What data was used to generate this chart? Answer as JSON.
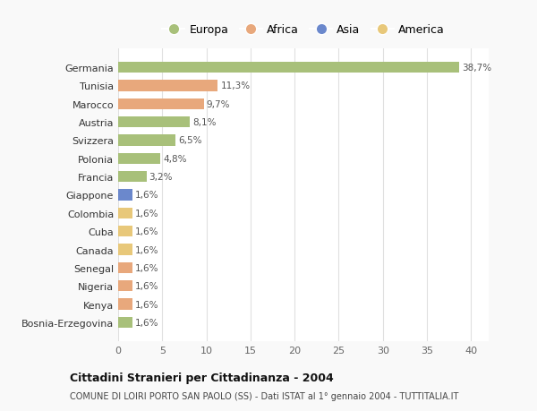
{
  "countries": [
    "Germania",
    "Tunisia",
    "Marocco",
    "Austria",
    "Svizzera",
    "Polonia",
    "Francia",
    "Giappone",
    "Colombia",
    "Cuba",
    "Canada",
    "Senegal",
    "Nigeria",
    "Kenya",
    "Bosnia-Erzegovina"
  ],
  "values": [
    38.7,
    11.3,
    9.7,
    8.1,
    6.5,
    4.8,
    3.2,
    1.6,
    1.6,
    1.6,
    1.6,
    1.6,
    1.6,
    1.6,
    1.6
  ],
  "labels": [
    "38,7%",
    "11,3%",
    "9,7%",
    "8,1%",
    "6,5%",
    "4,8%",
    "3,2%",
    "1,6%",
    "1,6%",
    "1,6%",
    "1,6%",
    "1,6%",
    "1,6%",
    "1,6%",
    "1,6%"
  ],
  "continents": [
    "Europa",
    "Africa",
    "Africa",
    "Europa",
    "Europa",
    "Europa",
    "Europa",
    "Asia",
    "America",
    "America",
    "America",
    "Africa",
    "Africa",
    "Africa",
    "Europa"
  ],
  "colors": {
    "Europa": "#a8c07a",
    "Africa": "#e8a87c",
    "Asia": "#6b88cc",
    "America": "#e8c87a"
  },
  "title": "Cittadini Stranieri per Cittadinanza - 2004",
  "subtitle": "COMUNE DI LOIRI PORTO SAN PAOLO (SS) - Dati ISTAT al 1° gennaio 2004 - TUTTITALIA.IT",
  "xlim": [
    0,
    42
  ],
  "xticks": [
    0,
    5,
    10,
    15,
    20,
    25,
    30,
    35,
    40
  ],
  "background_color": "#f9f9f9",
  "bar_background": "#ffffff",
  "grid_color": "#e0e0e0"
}
